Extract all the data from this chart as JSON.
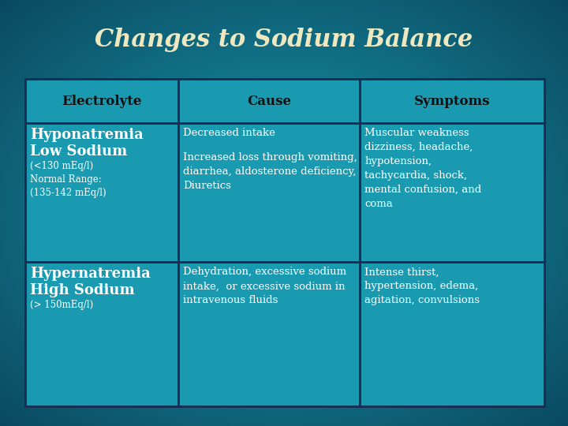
{
  "title": "Changes to Sodium Balance",
  "title_color": "#EEE8C0",
  "title_fontsize": 22,
  "bg_color_center": "#1a8fa0",
  "bg_color_edge": "#0a4a60",
  "table_bg_color": "#1a9ab0",
  "border_color": "#1a2a50",
  "header_text_color": "#111111",
  "cell_text_color": "#FFFFFF",
  "header_fontsize": 12,
  "cell_fontsize": 9.5,
  "small_fontsize": 8.5,
  "large_fontsize": 13,
  "headers": [
    "Electrolyte",
    "Cause",
    "Symptoms"
  ],
  "row1_col0_large": "Hyponatremia\nLow Sodium",
  "row1_col0_small": "(<130 mEq/l)\nNormal Range:\n(135-142 mEq/l)",
  "row1_col1_lines": [
    "Decreased intake",
    "Increased loss through vomiting,",
    "diarrhea, aldosterone deficiency,",
    "Diuretics"
  ],
  "row1_col2_lines": [
    "Muscular weakness",
    "dizziness, headache,",
    "hypotension,",
    "tachycardia, shock,",
    "mental confusion, and",
    "coma"
  ],
  "row2_col0_large": "Hypernatremia\nHigh Sodium",
  "row2_col0_small": "(> 150mEq/l)",
  "row2_col1_lines": [
    "Dehydration, excessive sodium",
    "intake,  or excessive sodium in",
    "intravenous fluids"
  ],
  "row2_col2_lines": [
    "Intense thirst,",
    "hypertension, edema,",
    "agitation, convulsions"
  ]
}
